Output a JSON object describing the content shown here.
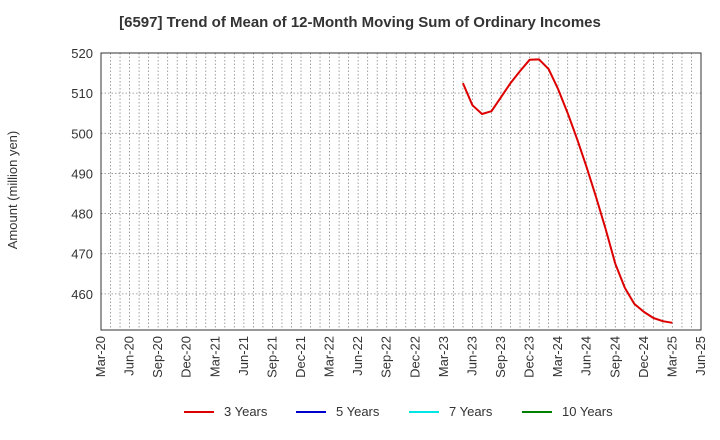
{
  "chart_data": {
    "type": "line",
    "title": "[6597]  Trend of Mean of 12-Month Moving Sum of Ordinary Incomes",
    "xlabel": "",
    "ylabel": "Amount (million yen)",
    "ylim": [
      451,
      520
    ],
    "yticks": [
      460,
      470,
      480,
      490,
      500,
      510,
      520
    ],
    "xticks": [
      "Mar-20",
      "Jun-20",
      "Sep-20",
      "Dec-20",
      "Mar-21",
      "Jun-21",
      "Sep-21",
      "Dec-21",
      "Mar-22",
      "Jun-22",
      "Sep-22",
      "Dec-22",
      "Mar-23",
      "Jun-23",
      "Sep-23",
      "Dec-23",
      "Mar-24",
      "Jun-24",
      "Sep-24",
      "Dec-24",
      "Mar-25",
      "Jun-25"
    ],
    "grid": true,
    "legend_position": "bottom",
    "series": [
      {
        "name": "3 Years",
        "color": "#dd0000",
        "x": [
          "May-23",
          "Jun-23",
          "Jul-23",
          "Aug-23",
          "Sep-23",
          "Oct-23",
          "Nov-23",
          "Dec-23",
          "Jan-24",
          "Feb-24",
          "Mar-24",
          "Apr-24",
          "May-24",
          "Jun-24",
          "Jul-24",
          "Aug-24",
          "Sep-24",
          "Oct-24",
          "Nov-24",
          "Dec-24",
          "Jan-25",
          "Feb-25",
          "Mar-25"
        ],
        "values": [
          512.5,
          507.0,
          504.8,
          505.5,
          509.0,
          512.5,
          515.5,
          518.3,
          518.4,
          516.0,
          511.0,
          505.0,
          498.5,
          491.5,
          484.0,
          476.0,
          467.5,
          461.5,
          457.5,
          455.5,
          454.0,
          453.2,
          452.8
        ]
      },
      {
        "name": "5 Years",
        "color": "#0000cc",
        "x": [],
        "values": []
      },
      {
        "name": "7 Years",
        "color": "#00e5e5",
        "x": [],
        "values": []
      },
      {
        "name": "10 Years",
        "color": "#008000",
        "x": [],
        "values": []
      }
    ]
  }
}
